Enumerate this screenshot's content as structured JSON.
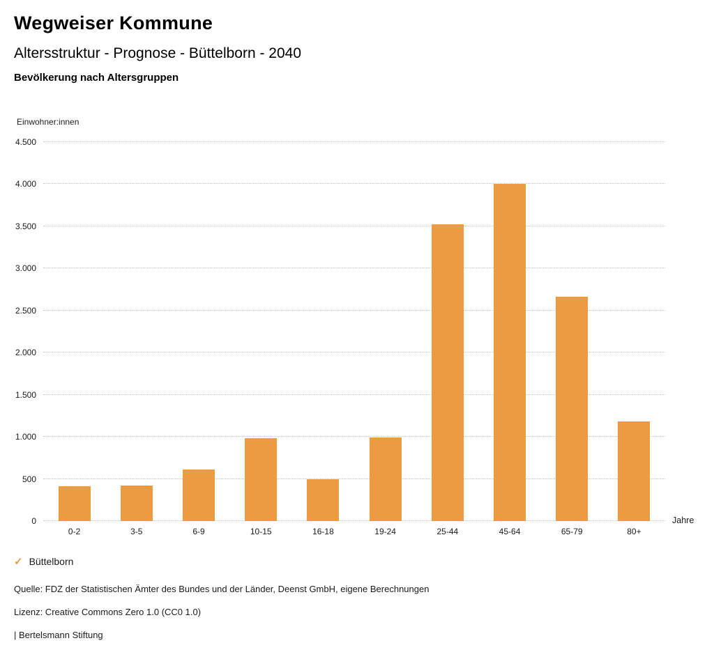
{
  "header": {
    "title": "Wegweiser Kommune",
    "subtitle": "Altersstruktur - Prognose - Büttelborn - 2040",
    "chart_heading": "Bevölkerung nach Altersgruppen"
  },
  "chart_data": {
    "type": "bar",
    "title": "Bevölkerung nach Altersgruppen",
    "categories": [
      "0-2",
      "3-5",
      "6-9",
      "10-15",
      "16-18",
      "19-24",
      "25-44",
      "45-64",
      "65-79",
      "80+"
    ],
    "values": [
      415,
      420,
      615,
      985,
      495,
      995,
      3525,
      4000,
      2660,
      1180
    ],
    "series_name": "Büttelborn",
    "xlabel": "Jahre",
    "ylabel": "Einwohner:innen",
    "ylim": [
      0,
      4500
    ],
    "yticks": [
      {
        "value": 0,
        "label": "0"
      },
      {
        "value": 500,
        "label": "500"
      },
      {
        "value": 1000,
        "label": "1.000"
      },
      {
        "value": 1500,
        "label": "1.500"
      },
      {
        "value": 2000,
        "label": "2.000"
      },
      {
        "value": 2500,
        "label": "2.500"
      },
      {
        "value": 3000,
        "label": "3.000"
      },
      {
        "value": 3500,
        "label": "3.500"
      },
      {
        "value": 4000,
        "label": "4.000"
      },
      {
        "value": 4500,
        "label": "4.500"
      }
    ],
    "bar_color": "#ED9B40",
    "grid": "horizontal-dotted",
    "legend_position": "bottom-left"
  },
  "legend": {
    "items": [
      {
        "icon": "check-icon",
        "label": "Büttelborn",
        "color": "#ED9B40",
        "check_glyph": "✓"
      }
    ]
  },
  "footer": {
    "source": "Quelle: FDZ der Statistischen Ämter des Bundes und der Länder, Deenst GmbH, eigene Berechnungen",
    "license": "Lizenz: Creative Commons Zero 1.0 (CC0 1.0)",
    "attribution": "| Bertelsmann Stiftung"
  }
}
